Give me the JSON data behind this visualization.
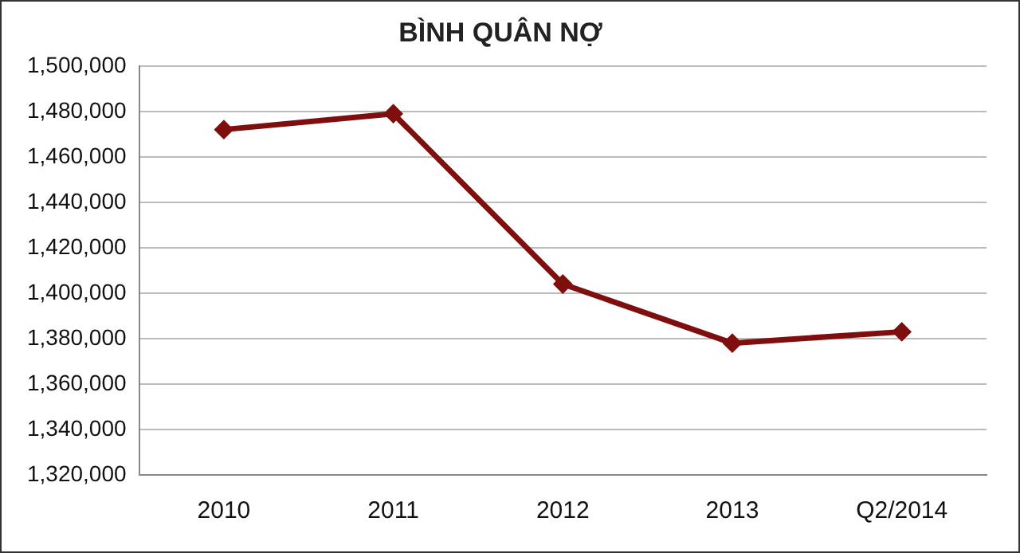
{
  "chart_data": {
    "type": "line",
    "title": "BÌNH QUÂN NỢ",
    "categories": [
      "2010",
      "2011",
      "2012",
      "2013",
      "Q2/2014"
    ],
    "series": [
      {
        "color": "#7f0f0f",
        "values": [
          1472000,
          1479000,
          1404000,
          1378000,
          1383000
        ]
      }
    ],
    "ylim": [
      1320000,
      1500000
    ],
    "yticks": [
      {
        "value": 1320000,
        "label": "1,320,000"
      },
      {
        "value": 1340000,
        "label": "1,340,000"
      },
      {
        "value": 1360000,
        "label": "1,360,000"
      },
      {
        "value": 1380000,
        "label": "1,380,000"
      },
      {
        "value": 1400000,
        "label": "1,400,000"
      },
      {
        "value": 1420000,
        "label": "1,420,000"
      },
      {
        "value": 1440000,
        "label": "1,440,000"
      },
      {
        "value": 1460000,
        "label": "1,460,000"
      },
      {
        "value": 1480000,
        "label": "1,480,000"
      },
      {
        "value": 1500000,
        "label": "1,500,000"
      }
    ],
    "grid": "y",
    "legend": false,
    "marker": "diamond",
    "line_style": "solid"
  }
}
